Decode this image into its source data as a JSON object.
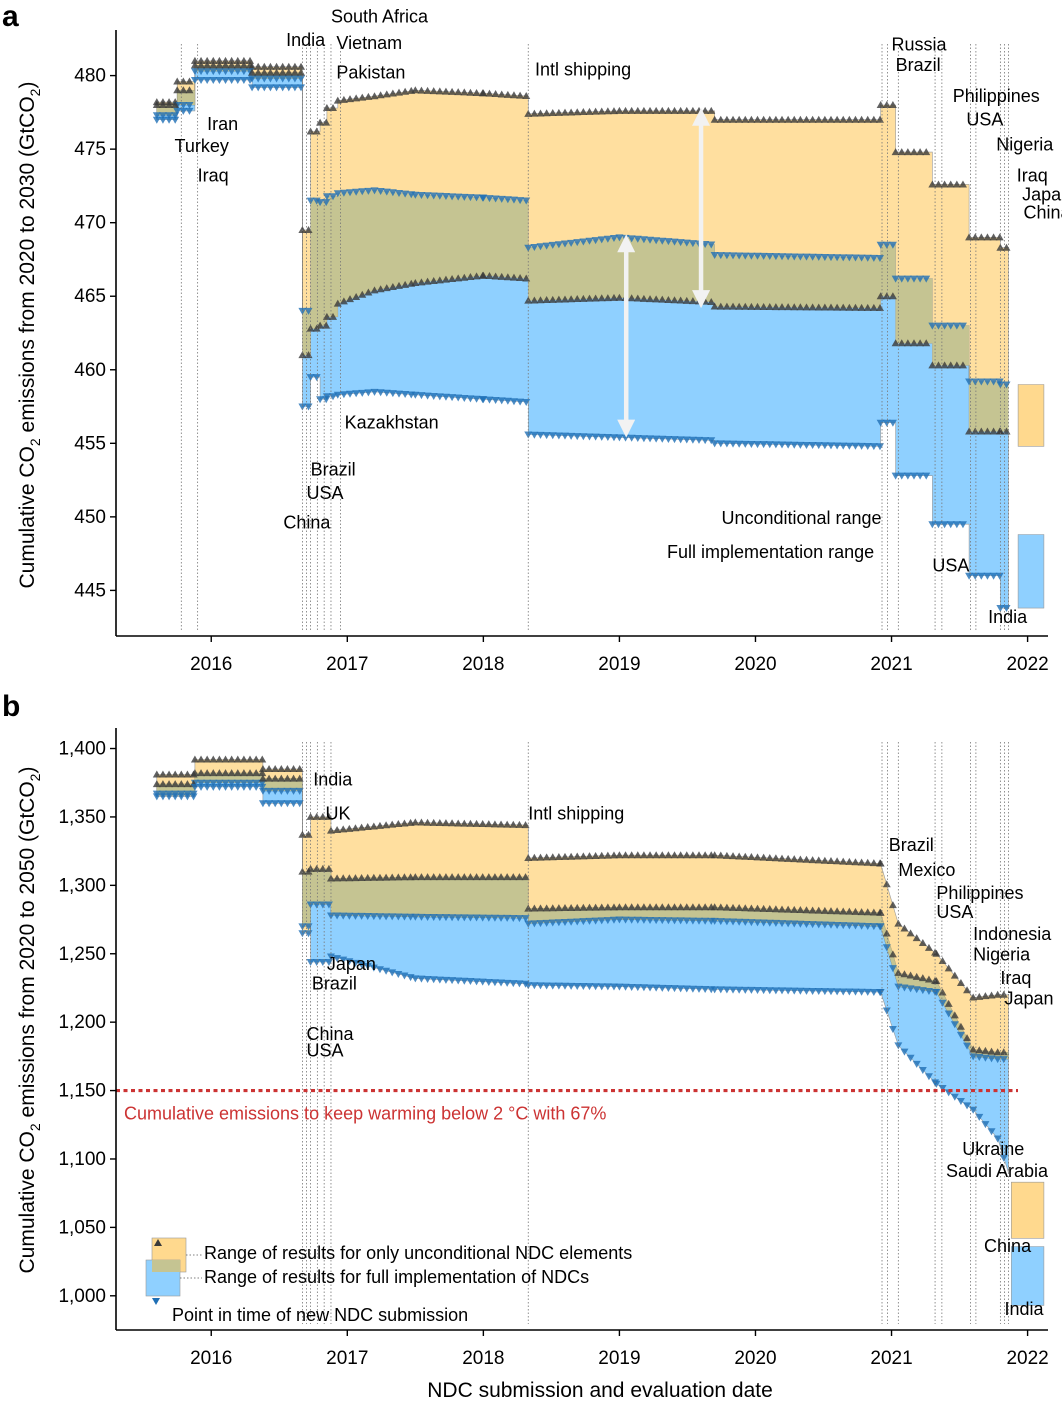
{
  "panels": {
    "a": {
      "label": "a",
      "ylabel_main": "Cumulative CO",
      "ylabel_sub": "2",
      "ylabel_tail": " emissions from 2020 to 2030 (GtCO",
      "ylabel_sub2": "2",
      "ylabel_end": ")"
    },
    "b": {
      "label": "b",
      "ylabel_main": "Cumulative CO",
      "ylabel_sub": "2",
      "ylabel_tail": " emissions from 2020 to 2050 (GtCO",
      "ylabel_sub2": "2",
      "ylabel_end": ")"
    }
  },
  "xlabel": "NDC submission and evaluation date",
  "colors": {
    "unconditional": "#ffd98e",
    "full": "#8fd0ff",
    "overlap": "#c5c492",
    "marker_up": "#3a3a3a",
    "marker_down": "#1f6fb5",
    "threshold": "#cc3333",
    "arrow": "#f2f2f2"
  },
  "chart_data": [
    {
      "panel": "a",
      "type": "area",
      "title": "",
      "xlabel": "",
      "ylabel": "Cumulative CO2 emissions from 2020 to 2030 (GtCO2)",
      "xlim": [
        2015.3,
        2022.15
      ],
      "ylim": [
        441.9,
        483.1
      ],
      "xticks": [
        2016,
        2017,
        2018,
        2019,
        2020,
        2021,
        2022
      ],
      "xtick_labels": [
        "2016",
        "2017",
        "2018",
        "2019",
        "2020",
        "2021",
        "2022"
      ],
      "yticks": [
        445,
        450,
        455,
        460,
        465,
        470,
        475,
        480
      ],
      "ytick_labels": [
        "445",
        "450",
        "455",
        "460",
        "465",
        "470",
        "475",
        "480"
      ],
      "series": [
        {
          "name": "Unconditional NDC range",
          "x": [
            2015.6,
            2015.75,
            2015.75,
            2015.88,
            2015.88,
            2016.3,
            2016.3,
            2016.67,
            2016.67,
            2016.73,
            2016.73,
            2016.8,
            2016.8,
            2016.85,
            2016.85,
            2016.93,
            2016.93,
            2017.2,
            2017.5,
            2018.0,
            2018.33,
            2018.33,
            2019.0,
            2019.7,
            2019.7,
            2020.92,
            2020.92,
            2021.03,
            2021.03,
            2021.3,
            2021.3,
            2021.57,
            2021.57,
            2021.8,
            2021.8,
            2021.86
          ],
          "upper": [
            478.2,
            478.2,
            479.6,
            479.6,
            481.0,
            481.0,
            480.6,
            480.6,
            469.5,
            469.5,
            476.2,
            476.2,
            476.8,
            476.8,
            477.8,
            477.8,
            478.3,
            478.6,
            479.0,
            478.8,
            478.6,
            477.4,
            477.6,
            477.6,
            477.0,
            477.0,
            478.0,
            478.0,
            474.8,
            474.8,
            472.6,
            472.6,
            469.0,
            469.0,
            468.3,
            468.3
          ],
          "lower": [
            477.3,
            477.3,
            478.0,
            478.0,
            480.3,
            480.3,
            479.8,
            479.8,
            464.0,
            464.0,
            471.5,
            471.5,
            471.4,
            471.4,
            471.8,
            471.8,
            472.0,
            472.2,
            471.9,
            471.7,
            471.5,
            468.3,
            469.0,
            468.5,
            467.8,
            467.6,
            468.5,
            468.5,
            466.2,
            466.2,
            463.0,
            463.0,
            459.2,
            459.2,
            459.0,
            459.0
          ]
        },
        {
          "name": "Full implementation range",
          "x": [
            2015.6,
            2015.75,
            2015.75,
            2015.88,
            2015.88,
            2016.3,
            2016.3,
            2016.67,
            2016.67,
            2016.73,
            2016.73,
            2016.8,
            2016.8,
            2016.85,
            2016.85,
            2016.93,
            2016.93,
            2017.2,
            2017.5,
            2018.0,
            2018.33,
            2018.33,
            2019.0,
            2019.7,
            2019.7,
            2020.92,
            2020.92,
            2021.03,
            2021.03,
            2021.3,
            2021.3,
            2021.57,
            2021.57,
            2021.8,
            2021.8,
            2021.86
          ],
          "upper": [
            478.0,
            478.0,
            479.0,
            479.0,
            480.7,
            480.7,
            480.2,
            480.2,
            461.0,
            461.0,
            462.8,
            462.8,
            463.0,
            463.0,
            463.6,
            463.6,
            464.5,
            465.4,
            465.9,
            466.4,
            466.2,
            464.7,
            464.9,
            464.6,
            464.3,
            464.2,
            465.0,
            465.0,
            461.8,
            461.8,
            460.3,
            460.3,
            455.8,
            455.8,
            455.8,
            455.8
          ],
          "lower": [
            477.0,
            477.0,
            477.6,
            477.6,
            479.7,
            479.7,
            479.2,
            479.2,
            457.5,
            457.5,
            459.5,
            459.5,
            458.0,
            458.0,
            458.2,
            458.2,
            458.3,
            458.5,
            458.3,
            458.0,
            457.8,
            455.6,
            455.4,
            455.2,
            455.0,
            454.8,
            456.4,
            456.4,
            452.8,
            452.8,
            449.5,
            449.5,
            446.0,
            446.0,
            443.8,
            443.8
          ]
        },
        {
          "name": "Latest unconditional range (box)",
          "x": [
            2021.93,
            2022.12
          ],
          "upper": [
            459.0,
            459.0
          ],
          "lower": [
            454.8,
            454.8
          ]
        },
        {
          "name": "Latest full implementation range (box)",
          "x": [
            2021.93,
            2022.12
          ],
          "upper": [
            448.8,
            448.8
          ],
          "lower": [
            443.8,
            443.8
          ]
        }
      ],
      "submission_dates": [
        2015.78,
        2015.9,
        2016.67,
        2016.7,
        2016.73,
        2016.78,
        2016.83,
        2016.88,
        2016.95,
        2018.33,
        2020.93,
        2020.97,
        2021.05,
        2021.32,
        2021.37,
        2021.58,
        2021.62,
        2021.8,
        2021.83,
        2021.86
      ],
      "annotations": [
        {
          "text": "Turkey",
          "x": 2015.73,
          "y": 474.8
        },
        {
          "text": "Iraq",
          "x": 2015.9,
          "y": 472.8
        },
        {
          "text": "Iran",
          "x": 2015.97,
          "y": 476.3
        },
        {
          "text": "India",
          "x": 2016.55,
          "y": 482.0
        },
        {
          "text": "South Africa",
          "x": 2016.88,
          "y": 483.6
        },
        {
          "text": "Vietnam",
          "x": 2016.92,
          "y": 481.8
        },
        {
          "text": "Pakistan",
          "x": 2016.92,
          "y": 479.8
        },
        {
          "text": "Intl shipping",
          "x": 2018.38,
          "y": 480.0
        },
        {
          "text": "Kazakhstan",
          "x": 2016.98,
          "y": 456.0
        },
        {
          "text": "Brazil",
          "x": 2016.73,
          "y": 452.8
        },
        {
          "text": "USA",
          "x": 2016.7,
          "y": 451.2
        },
        {
          "text": "China",
          "x": 2016.53,
          "y": 449.2
        },
        {
          "text": "Unconditional range",
          "x": 2019.75,
          "y": 449.5
        },
        {
          "text": "Full implementation range",
          "x": 2019.35,
          "y": 447.2
        },
        {
          "text": "Russia",
          "x": 2021.0,
          "y": 481.7
        },
        {
          "text": "Brazil",
          "x": 2021.03,
          "y": 480.3
        },
        {
          "text": "Philippines",
          "x": 2021.45,
          "y": 478.2
        },
        {
          "text": "USA",
          "x": 2021.55,
          "y": 476.6
        },
        {
          "text": "Nigeria",
          "x": 2021.77,
          "y": 474.9
        },
        {
          "text": "Iraq",
          "x": 2021.92,
          "y": 472.8
        },
        {
          "text": "Japan",
          "x": 2021.96,
          "y": 471.5
        },
        {
          "text": "China",
          "x": 2021.97,
          "y": 470.3
        },
        {
          "text": "USA",
          "x": 2021.3,
          "y": 446.3
        },
        {
          "text": "India",
          "x": 2021.71,
          "y": 442.8
        }
      ]
    },
    {
      "panel": "b",
      "type": "area",
      "title": "",
      "xlabel": "NDC submission and evaluation date",
      "ylabel": "Cumulative CO2 emissions from 2020 to 2050 (GtCO2)",
      "xlim": [
        2015.3,
        2022.15
      ],
      "ylim": [
        975,
        1415
      ],
      "xticks": [
        2016,
        2017,
        2018,
        2019,
        2020,
        2021,
        2022
      ],
      "xtick_labels": [
        "2016",
        "2017",
        "2018",
        "2019",
        "2020",
        "2021",
        "2022"
      ],
      "yticks": [
        1000,
        1050,
        1100,
        1150,
        1200,
        1250,
        1300,
        1350,
        1400
      ],
      "ytick_labels": [
        "1,000",
        "1,050",
        "1,100",
        "1,150",
        "1,200",
        "1,250",
        "1,300",
        "1,350",
        "1,400"
      ],
      "series": [
        {
          "name": "Unconditional NDC range",
          "x": [
            2015.6,
            2015.88,
            2015.88,
            2016.38,
            2016.38,
            2016.67,
            2016.67,
            2016.73,
            2016.73,
            2016.88,
            2016.88,
            2017.5,
            2018.33,
            2018.33,
            2019.0,
            2019.7,
            2020.92,
            2020.92,
            2021.05,
            2021.05,
            2021.33,
            2021.33,
            2021.6,
            2021.6,
            2021.78,
            2021.78,
            2021.86
          ],
          "upper": [
            1381,
            1381,
            1392,
            1392,
            1385,
            1385,
            1337,
            1337,
            1350,
            1350,
            1340,
            1346,
            1344,
            1320,
            1322,
            1322,
            1316,
            1316,
            1272,
            1272,
            1250,
            1250,
            1218,
            1218,
            1220,
            1220,
            1220
          ],
          "lower": [
            1365,
            1365,
            1375,
            1375,
            1369,
            1369,
            1265,
            1265,
            1286,
            1286,
            1278,
            1277,
            1276,
            1272,
            1275,
            1274,
            1270,
            1270,
            1226,
            1226,
            1222,
            1222,
            1175,
            1175,
            1173,
            1173,
            1173
          ]
        },
        {
          "name": "Full implementation range",
          "x": [
            2015.6,
            2015.88,
            2015.88,
            2016.38,
            2016.38,
            2016.67,
            2016.67,
            2016.73,
            2016.73,
            2016.88,
            2016.88,
            2017.5,
            2018.33,
            2018.33,
            2019.0,
            2019.7,
            2020.92,
            2020.92,
            2021.05,
            2021.05,
            2021.33,
            2021.33,
            2021.6,
            2021.6,
            2021.78,
            2021.78,
            2021.86
          ],
          "upper": [
            1374,
            1374,
            1382,
            1382,
            1378,
            1378,
            1310,
            1310,
            1312,
            1312,
            1305,
            1306,
            1306,
            1283,
            1284,
            1284,
            1280,
            1280,
            1236,
            1236,
            1230,
            1230,
            1180,
            1180,
            1178,
            1178,
            1178
          ],
          "lower": [
            1367,
            1367,
            1372,
            1372,
            1360,
            1360,
            1270,
            1270,
            1244,
            1244,
            1248,
            1232,
            1228,
            1227,
            1226,
            1224,
            1222,
            1222,
            1183,
            1183,
            1155,
            1155,
            1136,
            1136,
            1115,
            1115,
            1090
          ]
        },
        {
          "name": "Latest unconditional range (box)",
          "x": [
            2021.88,
            2022.12
          ],
          "upper": [
            1083,
            1083
          ],
          "lower": [
            1042,
            1042
          ]
        },
        {
          "name": "Latest full implementation range (box)",
          "x": [
            2021.88,
            2022.12
          ],
          "upper": [
            1036,
            1036
          ],
          "lower": [
            993,
            993
          ]
        }
      ],
      "submission_dates": [
        2016.67,
        2016.7,
        2016.73,
        2016.78,
        2016.83,
        2016.88,
        2018.33,
        2020.93,
        2020.97,
        2021.05,
        2021.32,
        2021.37,
        2021.58,
        2021.62,
        2021.8,
        2021.83,
        2021.86
      ],
      "threshold": {
        "value": 1150,
        "label": "Cumulative emissions to keep warming below 2 °C with 67%"
      },
      "annotations": [
        {
          "text": "India",
          "x": 2016.75,
          "y": 1373
        },
        {
          "text": "UK",
          "x": 2016.84,
          "y": 1348
        },
        {
          "text": "Intl shipping",
          "x": 2018.33,
          "y": 1348
        },
        {
          "text": "Japan",
          "x": 2016.85,
          "y": 1238
        },
        {
          "text": "Brazil",
          "x": 2016.74,
          "y": 1224
        },
        {
          "text": "China",
          "x": 2016.7,
          "y": 1187
        },
        {
          "text": "USA",
          "x": 2016.7,
          "y": 1175
        },
        {
          "text": "Brazil",
          "x": 2020.98,
          "y": 1325
        },
        {
          "text": "Mexico",
          "x": 2021.05,
          "y": 1307
        },
        {
          "text": "Philippines",
          "x": 2021.33,
          "y": 1290
        },
        {
          "text": "USA",
          "x": 2021.33,
          "y": 1276
        },
        {
          "text": "Indonesia",
          "x": 2021.6,
          "y": 1260
        },
        {
          "text": "Nigeria",
          "x": 2021.6,
          "y": 1245
        },
        {
          "text": "Iraq",
          "x": 2021.8,
          "y": 1228
        },
        {
          "text": "Japan",
          "x": 2021.83,
          "y": 1213
        },
        {
          "text": "Ukraine",
          "x": 2021.52,
          "y": 1103
        },
        {
          "text": "Saudi Arabia",
          "x": 2021.4,
          "y": 1087
        },
        {
          "text": "China",
          "x": 2021.68,
          "y": 1032
        },
        {
          "text": "India",
          "x": 2021.83,
          "y": 986
        }
      ],
      "legend": {
        "position": "bottom-left",
        "items": [
          "Range of results for only unconditional NDC elements",
          "Range of results for full implementation of NDCs",
          "Point in time of new NDC submission"
        ]
      }
    }
  ]
}
